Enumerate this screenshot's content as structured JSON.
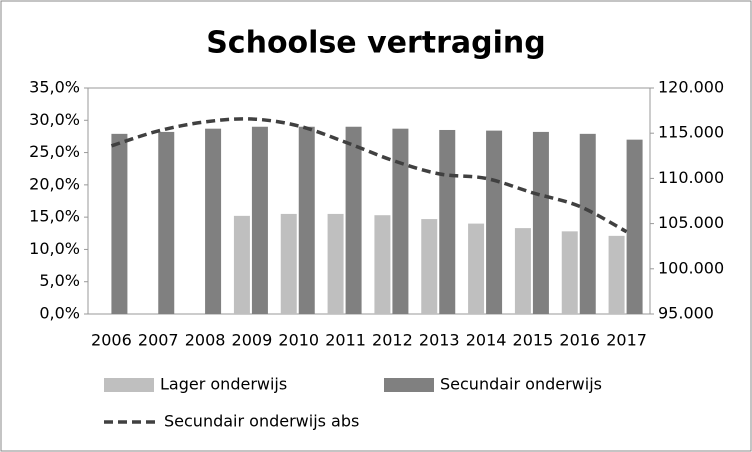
{
  "chart_data": {
    "type": "bar-line",
    "title": "Schoolse vertraging",
    "categories": [
      "2006",
      "2007",
      "2008",
      "2009",
      "2010",
      "2011",
      "2012",
      "2013",
      "2014",
      "2015",
      "2016",
      "2017"
    ],
    "series": [
      {
        "name": "Lager onderwijs",
        "type": "bar",
        "color": "#bfbfbf",
        "values": [
          null,
          null,
          null,
          15.2,
          15.5,
          15.5,
          15.3,
          14.7,
          14.0,
          13.3,
          12.8,
          12.1
        ]
      },
      {
        "name": "Secundair onderwijs",
        "type": "bar",
        "color": "#808080",
        "values": [
          27.9,
          28.2,
          28.7,
          29.0,
          29.0,
          29.0,
          28.7,
          28.5,
          28.4,
          28.2,
          27.9,
          27.0
        ]
      },
      {
        "name": "Secundair onderwijs abs",
        "type": "line",
        "axis": "y2",
        "color": "#404040",
        "dashed": true,
        "values": [
          113600,
          115250,
          116250,
          116570,
          115800,
          114000,
          112000,
          110500,
          110000,
          108400,
          106900,
          104100
        ]
      }
    ],
    "ylim": [
      0,
      35
    ],
    "yticks": [
      {
        "value": 0,
        "label": "0,0%"
      },
      {
        "value": 5,
        "label": "5,0%"
      },
      {
        "value": 10,
        "label": "10,0%"
      },
      {
        "value": 15,
        "label": "15,0%"
      },
      {
        "value": 20,
        "label": "20,0%"
      },
      {
        "value": 25,
        "label": "25,0%"
      },
      {
        "value": 30,
        "label": "30,0%"
      },
      {
        "value": 35,
        "label": "35,0%"
      }
    ],
    "y2lim": [
      95000,
      120000
    ],
    "y2ticks": [
      {
        "value": 95000,
        "label": "95.000"
      },
      {
        "value": 100000,
        "label": "100.000"
      },
      {
        "value": 105000,
        "label": "105.000"
      },
      {
        "value": 110000,
        "label": "110.000"
      },
      {
        "value": 115000,
        "label": "115.000"
      },
      {
        "value": 120000,
        "label": "120.000"
      }
    ],
    "grid": false,
    "legend": "bottom"
  }
}
